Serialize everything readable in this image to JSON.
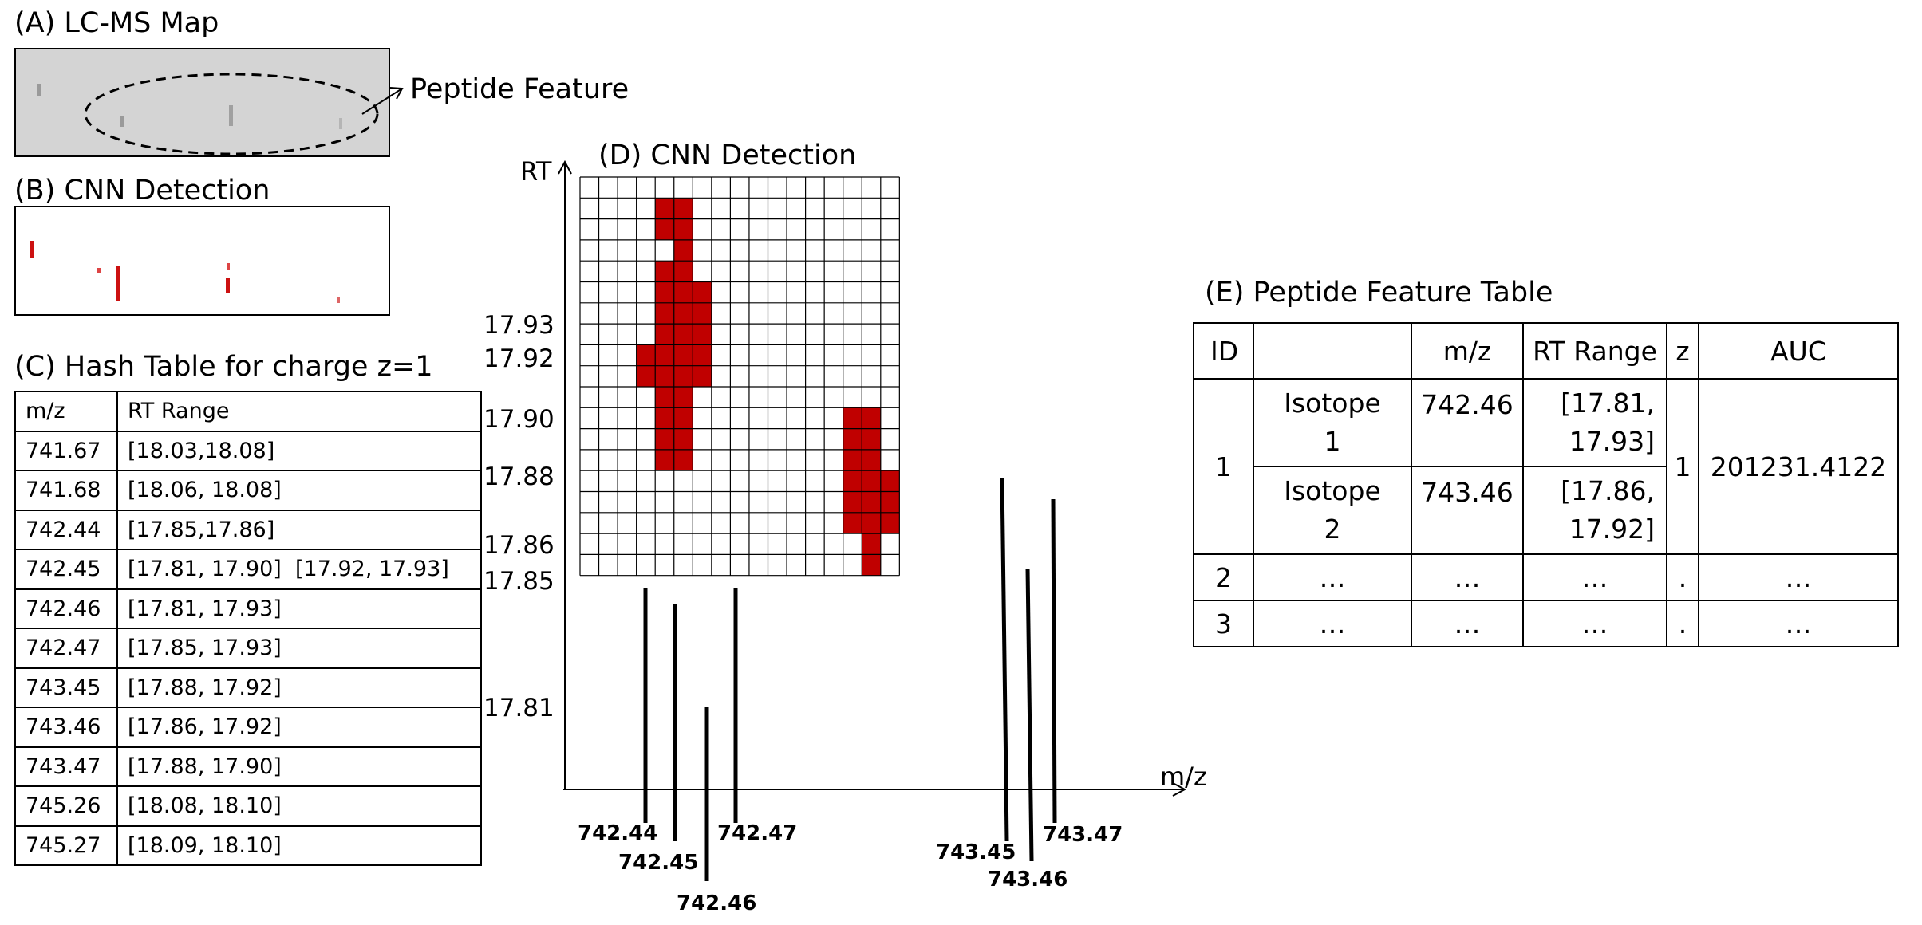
{
  "panel_a": {
    "title": "(A) LC-MS Map",
    "callout": "Peptide Feature"
  },
  "panel_b": {
    "title": "(B) CNN Detection"
  },
  "panel_c": {
    "title": "(C) Hash Table for charge z=1",
    "headers": [
      "m/z",
      "RT Range"
    ],
    "rows": [
      [
        "741.67",
        "[18.03,18.08]"
      ],
      [
        "741.68",
        "[18.06, 18.08]"
      ],
      [
        "742.44",
        "[17.85,17.86]"
      ],
      [
        "742.45",
        "[17.81, 17.90]  [17.92, 17.93]"
      ],
      [
        "742.46",
        "[17.81, 17.93]"
      ],
      [
        "742.47",
        "[17.85, 17.93]"
      ],
      [
        "743.45",
        "[17.88, 17.92]"
      ],
      [
        "743.46",
        "[17.86, 17.92]"
      ],
      [
        "743.47",
        "[17.88, 17.90]"
      ],
      [
        "745.26",
        "[18.08, 18.10]"
      ],
      [
        "745.27",
        "[18.09, 18.10]"
      ]
    ]
  },
  "panel_d": {
    "title": "(D) CNN Detection",
    "y_axis_label": "RT",
    "x_axis_label": "m/z",
    "rt_ticks": [
      "17.93",
      "17.92",
      "17.90",
      "17.88",
      "17.86",
      "17.85",
      "17.81"
    ],
    "mz_labels": [
      "742.44",
      "742.45",
      "742.46",
      "742.47",
      "743.45",
      "743.46",
      "743.47"
    ],
    "grid_cols": 17,
    "grid_rows": 19,
    "fill_color": "#c00000",
    "detected_cells": [
      [
        1,
        4
      ],
      [
        1,
        5
      ],
      [
        2,
        4
      ],
      [
        2,
        5
      ],
      [
        3,
        5
      ],
      [
        4,
        4
      ],
      [
        4,
        5
      ],
      [
        5,
        4
      ],
      [
        5,
        5
      ],
      [
        5,
        6
      ],
      [
        6,
        4
      ],
      [
        6,
        5
      ],
      [
        6,
        6
      ],
      [
        7,
        4
      ],
      [
        7,
        5
      ],
      [
        7,
        6
      ],
      [
        8,
        3
      ],
      [
        8,
        4
      ],
      [
        8,
        5
      ],
      [
        8,
        6
      ],
      [
        9,
        3
      ],
      [
        9,
        4
      ],
      [
        9,
        5
      ],
      [
        9,
        6
      ],
      [
        10,
        4
      ],
      [
        10,
        5
      ],
      [
        11,
        4
      ],
      [
        11,
        5
      ],
      [
        12,
        4
      ],
      [
        12,
        5
      ],
      [
        13,
        4
      ],
      [
        13,
        5
      ],
      [
        11,
        14
      ],
      [
        11,
        15
      ],
      [
        12,
        14
      ],
      [
        12,
        15
      ],
      [
        13,
        14
      ],
      [
        13,
        15
      ],
      [
        14,
        14
      ],
      [
        14,
        15
      ],
      [
        14,
        16
      ],
      [
        15,
        14
      ],
      [
        15,
        15
      ],
      [
        15,
        16
      ],
      [
        16,
        14
      ],
      [
        16,
        15
      ],
      [
        16,
        16
      ],
      [
        17,
        15
      ],
      [
        18,
        15
      ]
    ]
  },
  "panel_e": {
    "title": "(E) Peptide Feature Table",
    "headers": [
      "ID",
      "",
      "m/z",
      "RT Range",
      "z",
      "AUC"
    ],
    "feature_1": {
      "id": "1",
      "z": "1",
      "auc": "201231.4122",
      "isotopes": [
        {
          "label_1": "Isotope",
          "label_2": "1",
          "mz": "742.46",
          "rt_1": "[17.81,",
          "rt_2": "17.93]"
        },
        {
          "label_1": "Isotope",
          "label_2": "2",
          "mz": "743.46",
          "rt_1": "[17.86,",
          "rt_2": "17.92]"
        }
      ]
    },
    "other_rows": [
      {
        "id": "2",
        "iso": "…",
        "mz": "…",
        "rt": "…",
        "z": ".",
        "auc": "…"
      },
      {
        "id": "3",
        "iso": "…",
        "mz": "…",
        "rt": "…",
        "z": ".",
        "auc": "…"
      }
    ]
  }
}
